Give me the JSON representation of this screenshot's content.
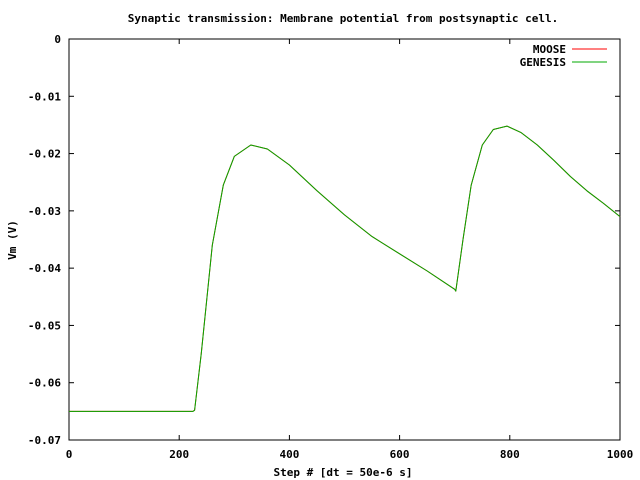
{
  "chart_data": {
    "type": "line",
    "title": "Synaptic transmission: Membrane potential from postsynaptic cell.",
    "xlabel": "Step # [dt = 50e-6 s]",
    "ylabel": "Vm (V)",
    "xlim": [
      0,
      1000
    ],
    "ylim": [
      -0.07,
      0
    ],
    "xticks": [
      0,
      200,
      400,
      600,
      800,
      1000
    ],
    "yticks": [
      0,
      -0.01,
      -0.02,
      -0.03,
      -0.04,
      -0.05,
      -0.06,
      -0.07
    ],
    "xtick_labels": [
      "0",
      "200",
      "400",
      "600",
      "800",
      "1000"
    ],
    "ytick_labels": [
      "0",
      "-0.01",
      "-0.02",
      "-0.03",
      "-0.04",
      "-0.05",
      "-0.06",
      "-0.07"
    ],
    "grid": false,
    "legend_position": "top-right",
    "series": [
      {
        "name": "MOOSE",
        "color": "#ff0000",
        "x": [
          0,
          100,
          225,
          228,
          240,
          260,
          280,
          300,
          330,
          360,
          400,
          450,
          500,
          550,
          600,
          650,
          700,
          702,
          715,
          730,
          750,
          770,
          795,
          820,
          850,
          880,
          910,
          940,
          970,
          1000
        ],
        "y": [
          -0.065,
          -0.065,
          -0.065,
          -0.0648,
          -0.055,
          -0.036,
          -0.0255,
          -0.0205,
          -0.0185,
          -0.0192,
          -0.022,
          -0.0265,
          -0.0307,
          -0.0345,
          -0.0375,
          -0.0405,
          -0.0437,
          -0.044,
          -0.035,
          -0.0255,
          -0.0185,
          -0.0158,
          -0.0152,
          -0.0163,
          -0.0185,
          -0.0212,
          -0.024,
          -0.0265,
          -0.0287,
          -0.031
        ]
      },
      {
        "name": "GENESIS",
        "color": "#00aa00",
        "x": [
          0,
          100,
          225,
          228,
          240,
          260,
          280,
          300,
          330,
          360,
          400,
          450,
          500,
          550,
          600,
          650,
          700,
          702,
          715,
          730,
          750,
          770,
          795,
          820,
          850,
          880,
          910,
          940,
          970,
          1000
        ],
        "y": [
          -0.065,
          -0.065,
          -0.065,
          -0.0648,
          -0.055,
          -0.036,
          -0.0255,
          -0.0205,
          -0.0185,
          -0.0192,
          -0.022,
          -0.0265,
          -0.0307,
          -0.0345,
          -0.0375,
          -0.0405,
          -0.0437,
          -0.044,
          -0.035,
          -0.0255,
          -0.0185,
          -0.0158,
          -0.0152,
          -0.0163,
          -0.0185,
          -0.0212,
          -0.024,
          -0.0265,
          -0.0287,
          -0.031
        ]
      }
    ]
  }
}
